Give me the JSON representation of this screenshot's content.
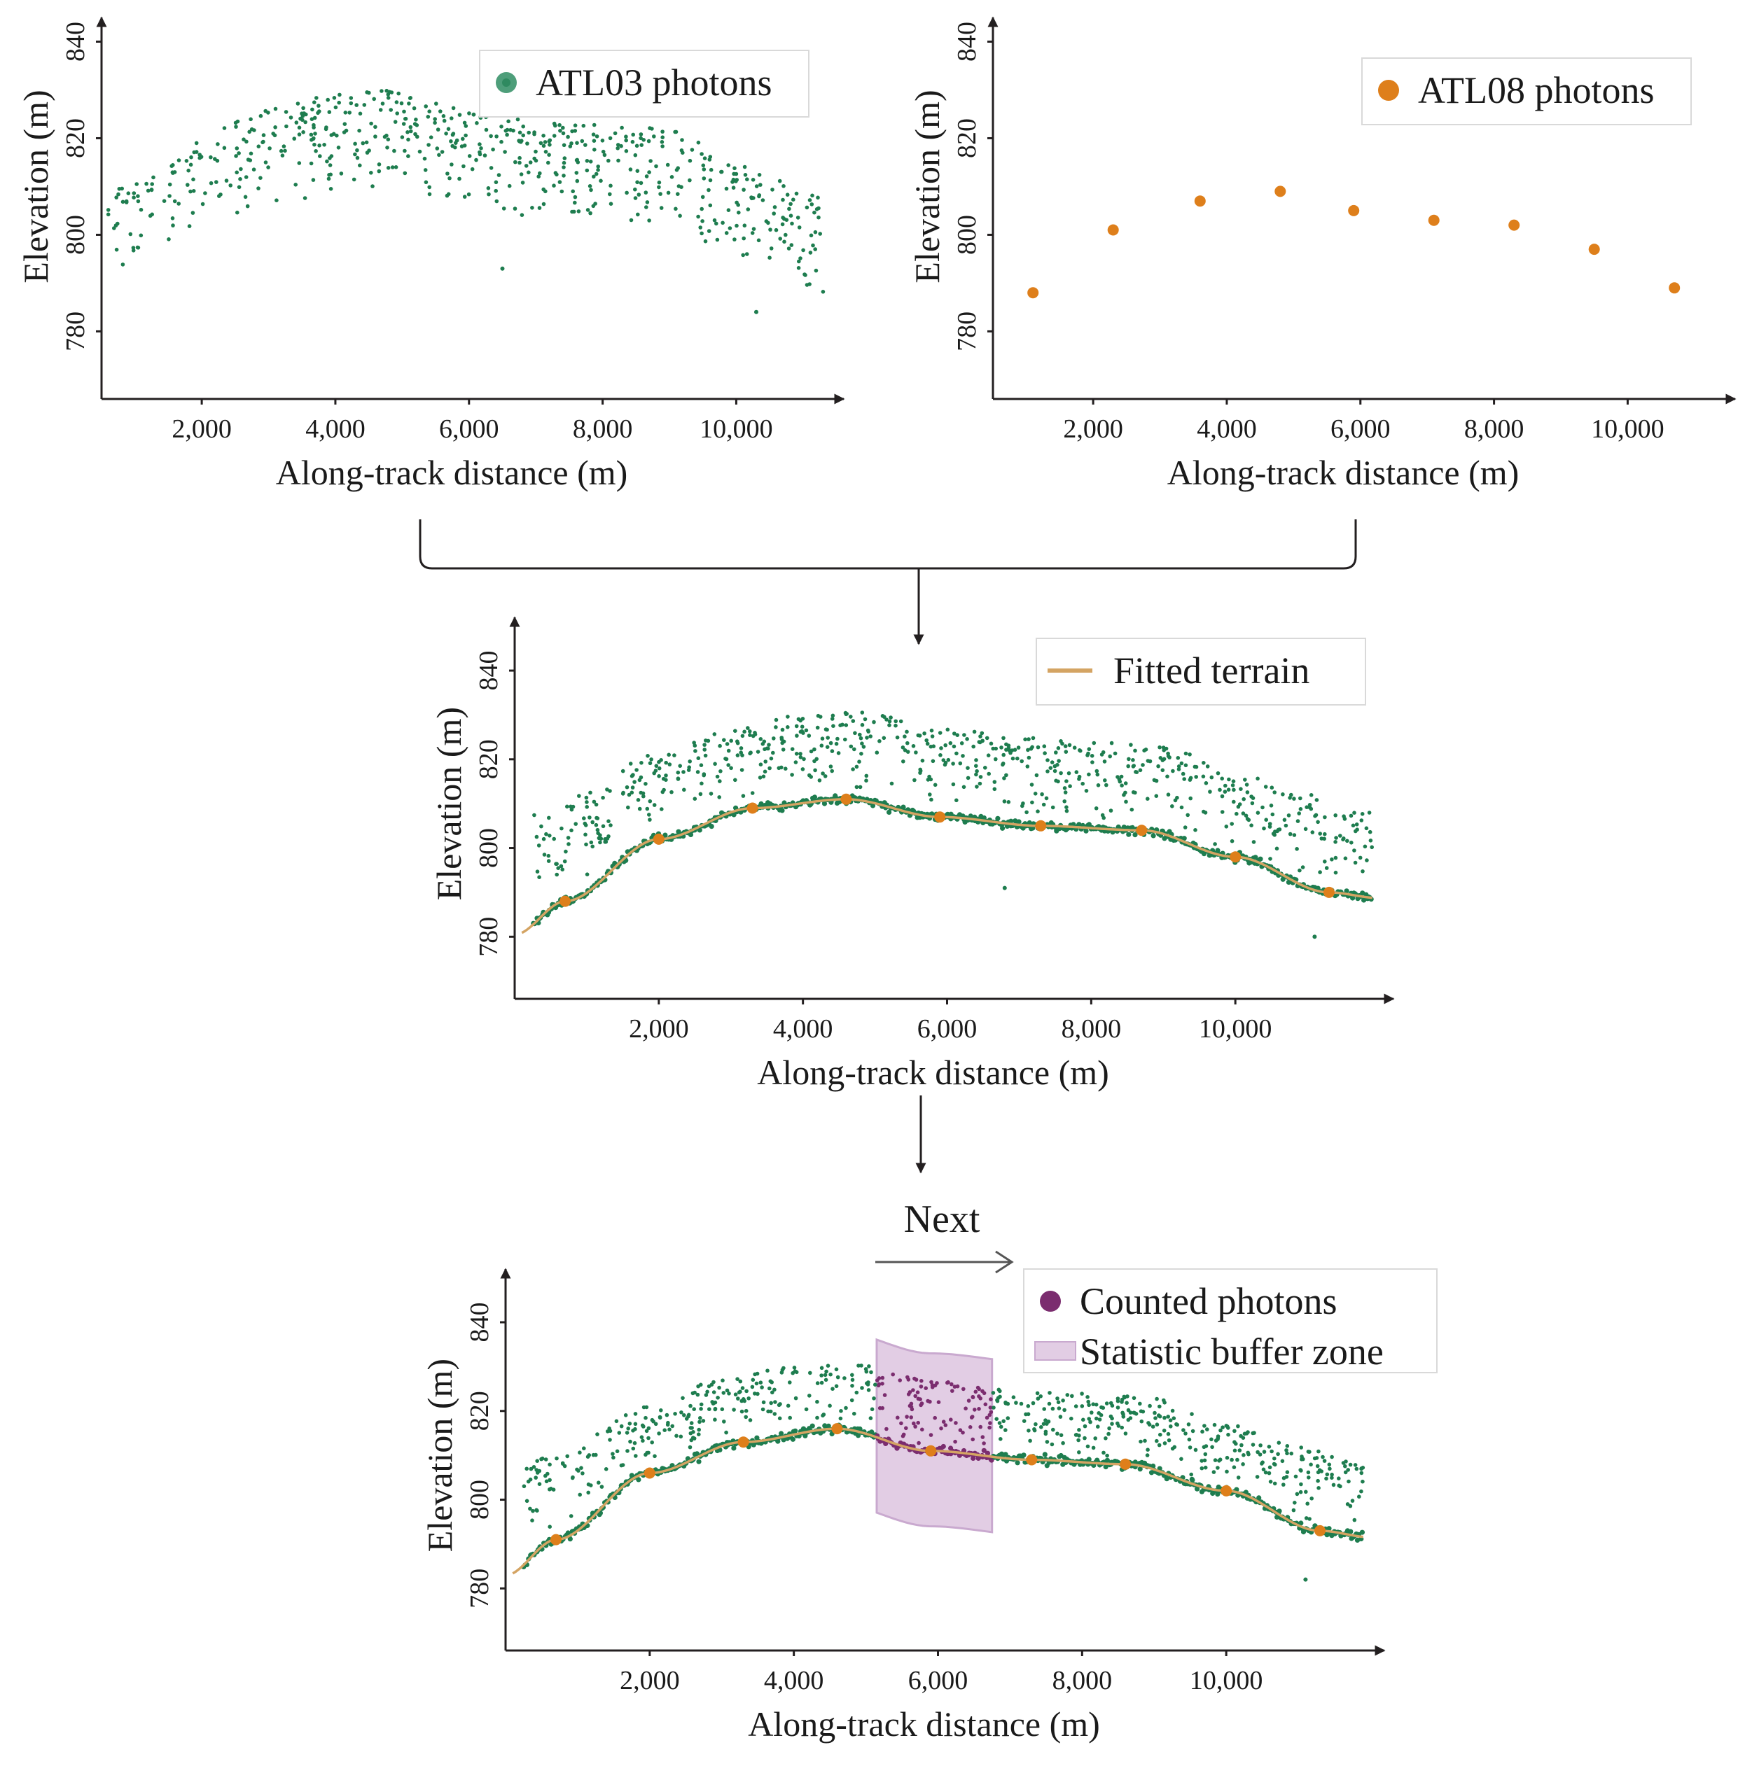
{
  "colors": {
    "atl03": "#1e7d4f",
    "atl03_legend": "#4e9e7a",
    "atl08": "#de7f1b",
    "fitted": "#d4a463",
    "counted": "#7b2d6f",
    "buffer_fill": "#e2cde4",
    "buffer_stroke": "#c9a9cf",
    "axis": "#231f20"
  },
  "flow": {
    "next_label": "Next"
  },
  "chart_data": [
    {
      "id": "atl03",
      "type": "scatter",
      "xlabel": "Along-track distance (m)",
      "ylabel": "Elevation (m)",
      "xlim": [
        500,
        11400
      ],
      "ylim": [
        766,
        845
      ],
      "xticks": [
        2000,
        4000,
        6000,
        8000,
        10000
      ],
      "xtick_labels": [
        "2,000",
        "4,000",
        "6,000",
        "8,000",
        "10,000"
      ],
      "yticks": [
        780,
        800,
        820,
        840
      ],
      "ytick_labels": [
        "780",
        "800",
        "820",
        "840"
      ],
      "legend": [
        {
          "label": "ATL03 photons",
          "kind": "marker",
          "color_key": "atl03_legend"
        }
      ],
      "series": [
        {
          "name": "ATL03 ground photons",
          "color_key": "atl03",
          "kind": "ground_band",
          "x_range": [
            600,
            11300
          ],
          "spread": 1.4,
          "count": 520
        },
        {
          "name": "ATL03 canopy photons",
          "color_key": "atl03",
          "kind": "canopy",
          "x_range": [
            600,
            11300
          ],
          "count": 640,
          "top_profile": {
            "x": [
              600,
              1500,
              2100,
              3000,
              4000,
              4800,
              6000,
              7000,
              8000,
              9000,
              10000,
              11300
            ],
            "y": [
              812,
              816,
              822,
              826,
              829,
              830,
              826,
              824,
              823,
              822,
              815,
              808
            ]
          }
        },
        {
          "name": "Outliers",
          "color_key": "atl03",
          "kind": "points",
          "x": [
            6500,
            10300
          ],
          "y": [
            793,
            784
          ]
        }
      ]
    },
    {
      "id": "atl08",
      "type": "scatter",
      "xlabel": "Along-track distance (m)",
      "ylabel": "Elevation (m)",
      "xlim": [
        500,
        11400
      ],
      "ylim": [
        766,
        845
      ],
      "xticks": [
        2000,
        4000,
        6000,
        8000,
        10000
      ],
      "xtick_labels": [
        "2,000",
        "4,000",
        "6,000",
        "8,000",
        "10,000"
      ],
      "yticks": [
        780,
        800,
        820,
        840
      ],
      "ytick_labels": [
        "780",
        "800",
        "820",
        "840"
      ],
      "legend": [
        {
          "label": "ATL08 photons",
          "kind": "marker",
          "color_key": "atl08"
        }
      ],
      "series": [
        {
          "name": "ATL08 photons",
          "color_key": "atl08",
          "kind": "points",
          "x": [
            1100,
            2300,
            3600,
            4800,
            5900,
            7100,
            8300,
            9500,
            10700
          ],
          "y": [
            788,
            801,
            807,
            809,
            805,
            803,
            802,
            797,
            789
          ]
        }
      ]
    },
    {
      "id": "fitted",
      "type": "scatter",
      "xlabel": "Along-track distance (m)",
      "ylabel": "Elevation (m)",
      "xlim": [
        0,
        12000
      ],
      "ylim": [
        766,
        852
      ],
      "xticks": [
        2000,
        4000,
        6000,
        8000,
        10000
      ],
      "xtick_labels": [
        "2,000",
        "4,000",
        "6,000",
        "8,000",
        "10,000"
      ],
      "yticks": [
        780,
        800,
        820,
        840
      ],
      "ytick_labels": [
        "780",
        "800",
        "820",
        "840"
      ],
      "legend": [
        {
          "label": "Fitted terrain",
          "kind": "line",
          "color_key": "fitted"
        }
      ],
      "series": [
        {
          "name": "ATL03 ground photons",
          "color_key": "atl03",
          "kind": "ground_band",
          "x_range": [
            250,
            11900
          ],
          "spread": 1.4,
          "count": 560
        },
        {
          "name": "ATL03 canopy photons",
          "color_key": "atl03",
          "kind": "canopy",
          "x_range": [
            250,
            11900
          ],
          "count": 680,
          "top_profile": {
            "x": [
              250,
              1000,
              1900,
              3000,
              4000,
              4800,
              6000,
              7000,
              8000,
              9000,
              10000,
              11000,
              11900
            ],
            "y": [
              808,
              813,
              821,
              827,
              830,
              831,
              827,
              825,
              824,
              823,
              817,
              812,
              808
            ]
          }
        },
        {
          "name": "Outliers",
          "color_key": "atl03",
          "kind": "points",
          "x": [
            6800,
            11100
          ],
          "y": [
            791,
            780
          ]
        },
        {
          "name": "Fitted terrain",
          "color_key": "fitted",
          "kind": "terrain_line",
          "x_range": [
            100,
            11900
          ]
        },
        {
          "name": "ATL08 photons",
          "color_key": "atl08",
          "kind": "points",
          "x": [
            700,
            2000,
            3300,
            4600,
            5900,
            7300,
            8700,
            10000,
            11300
          ],
          "y": [
            788,
            802,
            809,
            811,
            807,
            805,
            804,
            798,
            790
          ]
        }
      ]
    },
    {
      "id": "buffer",
      "type": "scatter",
      "xlabel": "Along-track distance (m)",
      "ylabel": "Elevation (m)",
      "xlim": [
        0,
        12000
      ],
      "ylim": [
        766,
        852
      ],
      "xticks": [
        2000,
        4000,
        6000,
        8000,
        10000
      ],
      "xtick_labels": [
        "2,000",
        "4,000",
        "6,000",
        "8,000",
        "10,000"
      ],
      "yticks": [
        780,
        800,
        820,
        840
      ],
      "ytick_labels": [
        "780",
        "800",
        "820",
        "840"
      ],
      "legend": [
        {
          "label": "Counted photons",
          "kind": "marker",
          "color_key": "counted"
        },
        {
          "label": "Statistic buffer zone",
          "kind": "patch",
          "color_key": "buffer_fill"
        }
      ],
      "buffer_zone": {
        "x_range": [
          5150,
          6750
        ],
        "offset_below": 17,
        "offset_above": 22
      },
      "series": [
        {
          "name": "ATL03 ground photons",
          "color_key": "atl03",
          "kind": "ground_band",
          "x_range": [
            250,
            11900
          ],
          "spread": 1.4,
          "count": 560
        },
        {
          "name": "ATL03 canopy photons",
          "color_key": "atl03",
          "kind": "canopy",
          "x_range": [
            250,
            11900
          ],
          "count": 680,
          "top_profile": {
            "x": [
              250,
              1000,
              1900,
              3000,
              4000,
              4800,
              6000,
              7000,
              8000,
              9000,
              10000,
              11000,
              11900
            ],
            "y": [
              808,
              813,
              821,
              827,
              830,
              831,
              827,
              825,
              824,
              823,
              817,
              812,
              808
            ]
          }
        },
        {
          "name": "Outliers",
          "color_key": "atl03",
          "kind": "points",
          "x": [
            11100
          ],
          "y": [
            782
          ]
        },
        {
          "name": "Fitted terrain",
          "color_key": "fitted",
          "kind": "terrain_line",
          "x_range": [
            100,
            11900
          ]
        },
        {
          "name": "ATL08 photons",
          "color_key": "atl08",
          "kind": "points",
          "x": [
            700,
            2000,
            3300,
            4600,
            5900,
            7300,
            8600,
            10000,
            11300
          ],
          "y": [
            791,
            806,
            813,
            816,
            811,
            809,
            808,
            802,
            793
          ]
        }
      ]
    }
  ]
}
